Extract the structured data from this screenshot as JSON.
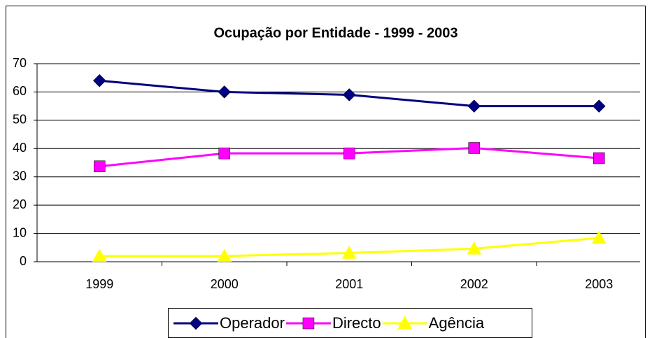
{
  "chart_data": {
    "type": "line",
    "title": "Ocupação por Entidade - 1999 - 2003",
    "categories": [
      "1999",
      "2000",
      "2001",
      "2002",
      "2003"
    ],
    "series": [
      {
        "name": "Operador",
        "color": "#000080",
        "marker": "diamond",
        "values": [
          64,
          60,
          59,
          55,
          55
        ]
      },
      {
        "name": "Directo",
        "color": "#ff00ff",
        "marker": "square",
        "values": [
          33.7,
          38.3,
          38.3,
          40.2,
          36.6
        ]
      },
      {
        "name": "Agência",
        "color": "#ffff00",
        "marker": "triangle",
        "values": [
          2,
          2,
          3.1,
          4.6,
          8.4
        ]
      }
    ],
    "ylim": [
      0,
      70
    ],
    "yticks": [
      0,
      10,
      20,
      30,
      40,
      50,
      60,
      70
    ],
    "grid": true,
    "legend": "bottom"
  }
}
